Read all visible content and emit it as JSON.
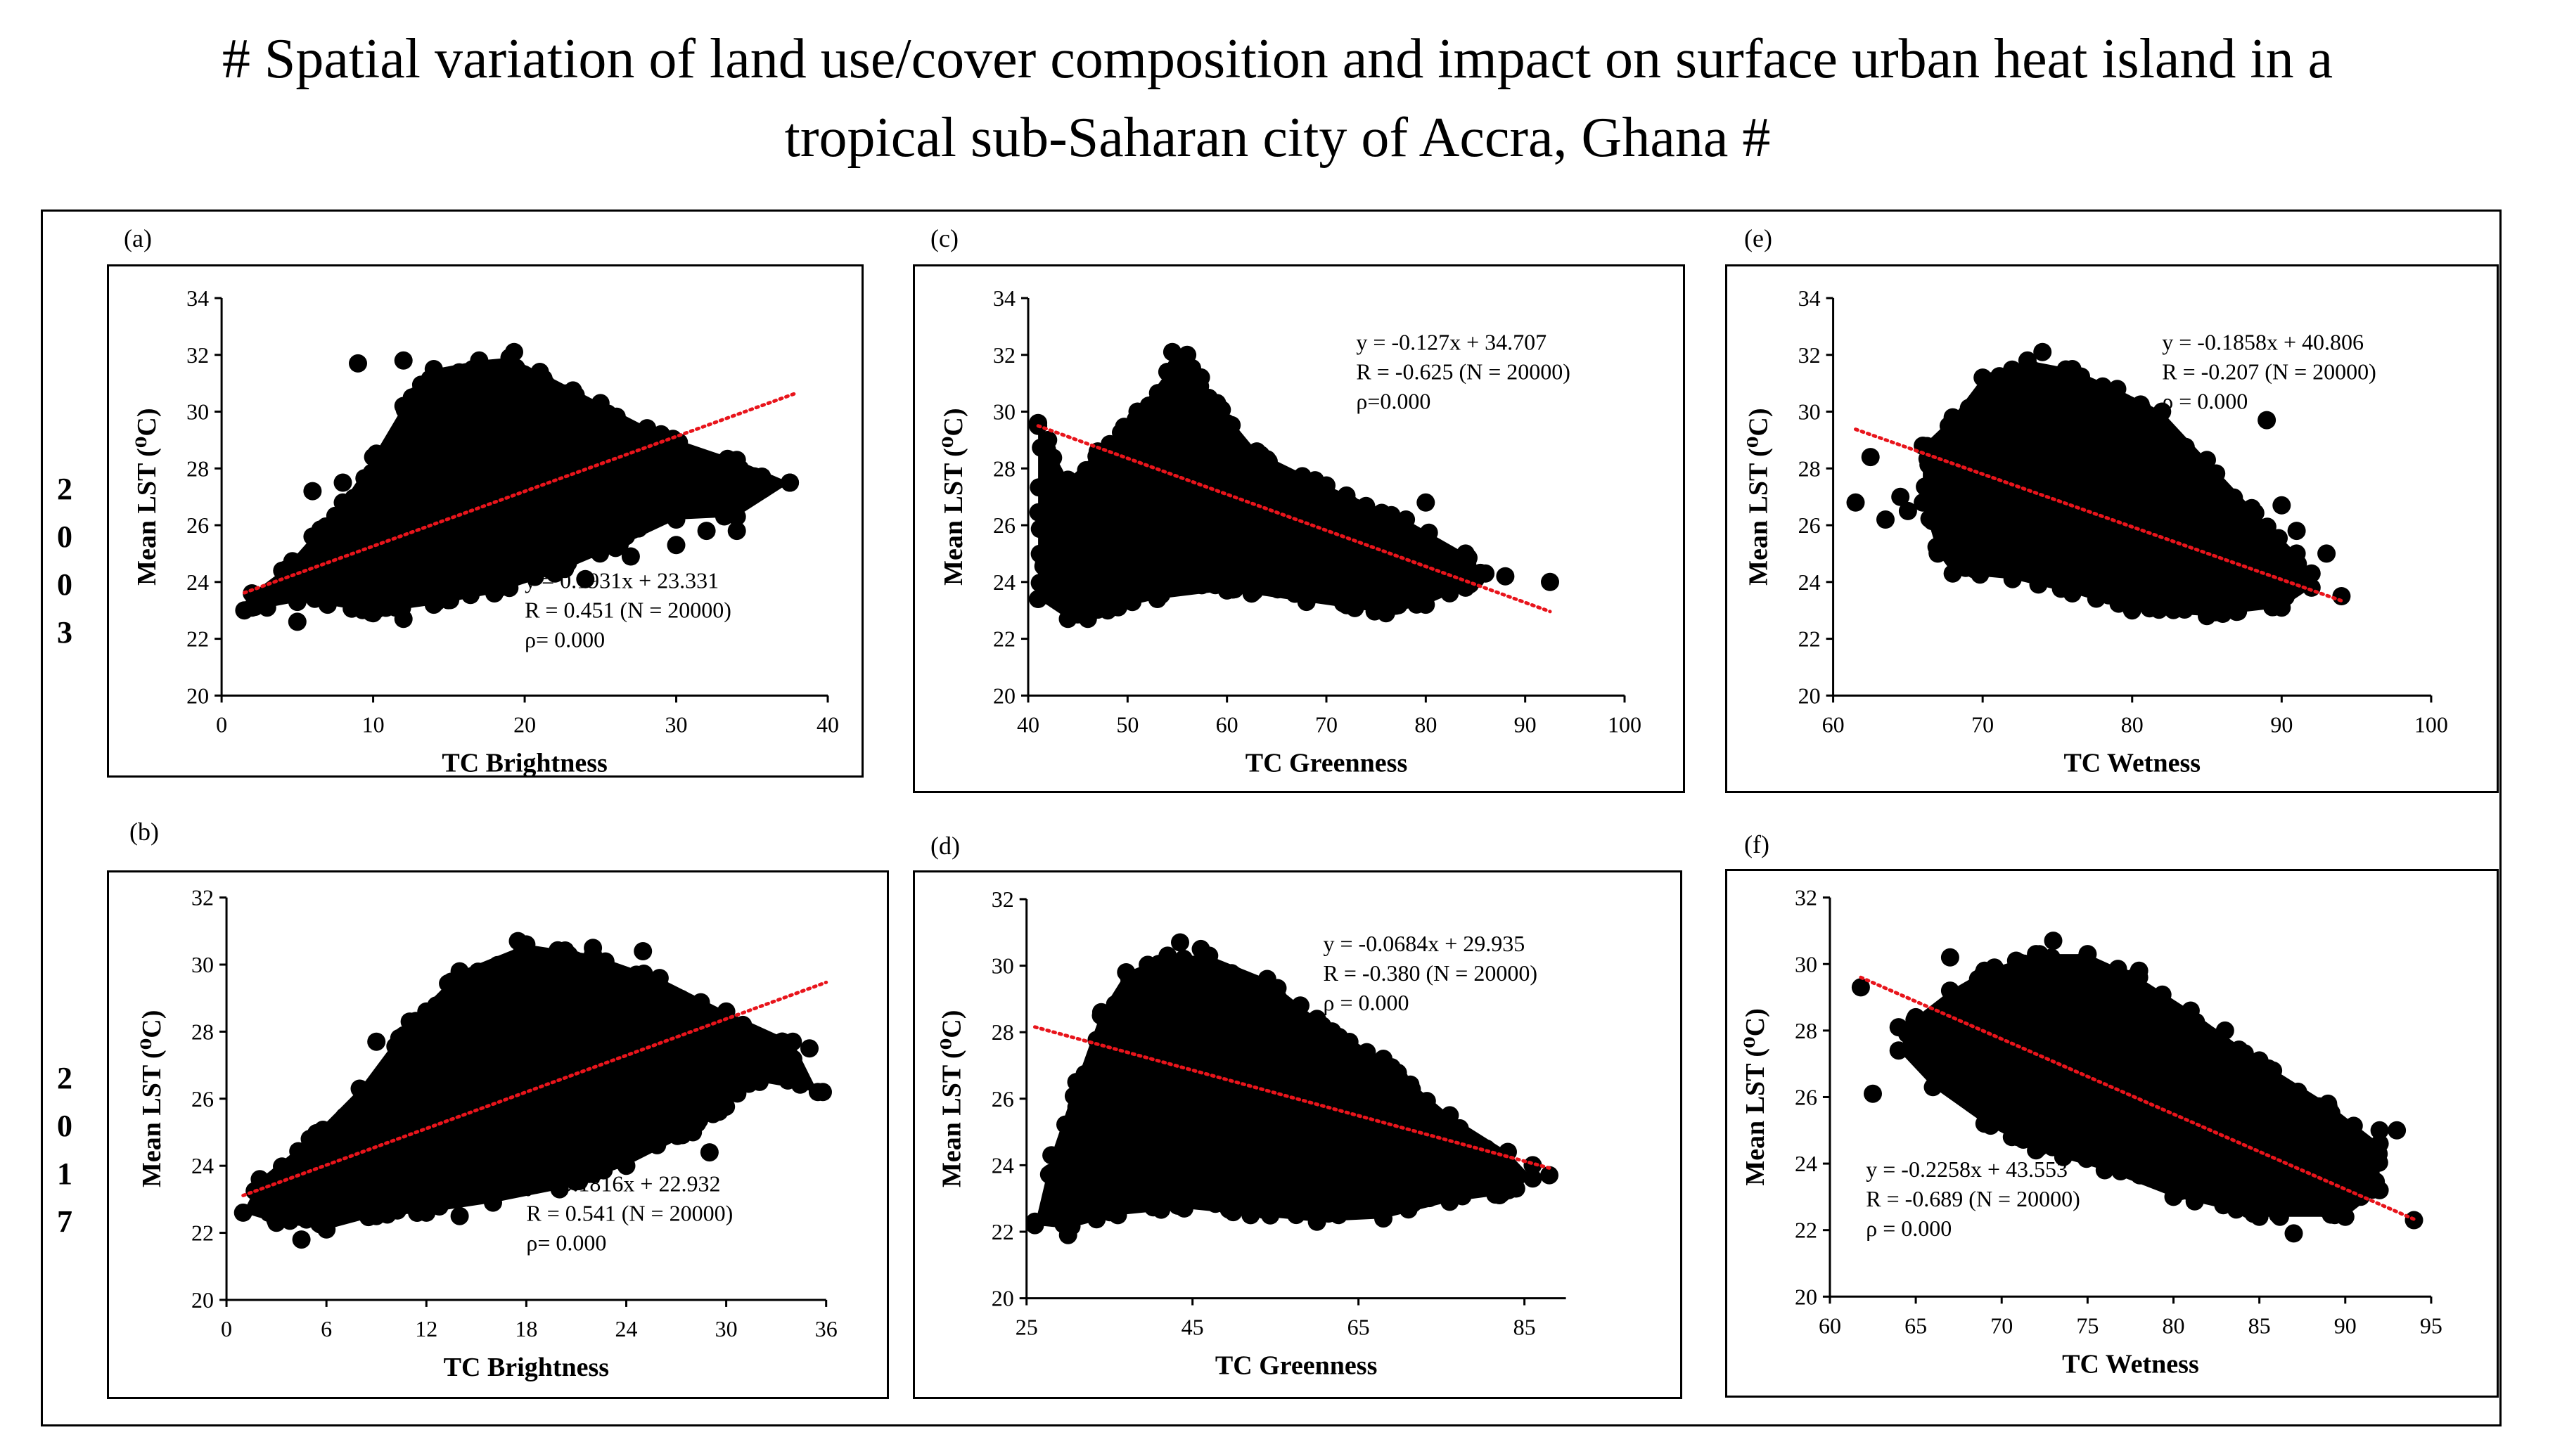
{
  "title": {
    "line1": "# Spatial variation of land use/cover composition and impact on surface urban heat island in a",
    "line2": "tropical sub-Saharan city of Accra, Ghana #"
  },
  "rows": [
    {
      "year_label": [
        "2",
        "0",
        "0",
        "3"
      ]
    },
    {
      "year_label": [
        "2",
        "0",
        "1",
        "7"
      ]
    }
  ],
  "colors": {
    "points": "#000000",
    "trendline": "#e8141b",
    "frame": "#000000"
  },
  "chart_data": [
    {
      "id": "a",
      "panel_label": "(a)",
      "type": "scatter",
      "xlabel": "TC Brightness",
      "ylabel": "Mean LST (⁰C)",
      "xlim": [
        0,
        40
      ],
      "ylim": [
        20,
        34
      ],
      "xticks": [
        0,
        10,
        20,
        30,
        40
      ],
      "yticks": [
        20,
        22,
        24,
        26,
        28,
        30,
        32,
        34
      ],
      "grid": false,
      "trendline": {
        "slope": 0.1931,
        "intercept": 23.331,
        "x_range": [
          1.5,
          38
        ]
      },
      "equation": "y = 0.1931x + 23.331",
      "r_text": "R = 0.451 (N =  20000)",
      "p_text": "ρ= 0.000",
      "annotation_position": "bottom-center",
      "cloud": [
        [
          1.5,
          23.0
        ],
        [
          3,
          23.1
        ],
        [
          5,
          23.3
        ],
        [
          7,
          23.2
        ],
        [
          10,
          22.9
        ],
        [
          14,
          23.2
        ],
        [
          18,
          23.6
        ],
        [
          22,
          24.3
        ],
        [
          26,
          25.2
        ],
        [
          30,
          26.2
        ],
        [
          34,
          26.3
        ],
        [
          37.5,
          27.5
        ],
        [
          34,
          28.3
        ],
        [
          29,
          29.2
        ],
        [
          25,
          30.3
        ],
        [
          21,
          31.4
        ],
        [
          19,
          31.9
        ],
        [
          17,
          31.8
        ],
        [
          14,
          31.5
        ],
        [
          12,
          30.2
        ],
        [
          10,
          28.4
        ],
        [
          8,
          26.8
        ],
        [
          6,
          25.6
        ],
        [
          4,
          24.4
        ],
        [
          2,
          23.6
        ]
      ],
      "points": [
        [
          9,
          31.7
        ],
        [
          12,
          31.8
        ],
        [
          19.3,
          32.1
        ],
        [
          35,
          27.5
        ],
        [
          37.5,
          27.5
        ],
        [
          32,
          25.8
        ],
        [
          34,
          25.8
        ],
        [
          30,
          25.3
        ],
        [
          27,
          24.9
        ],
        [
          24,
          24.1
        ],
        [
          6,
          27.2
        ],
        [
          8,
          27.5
        ],
        [
          5,
          22.6
        ],
        [
          12,
          22.7
        ],
        [
          2,
          23.1
        ],
        [
          7,
          24.3
        ],
        [
          15,
          28.5
        ],
        [
          25,
          29.0
        ],
        [
          28,
          28.0
        ],
        [
          10,
          25.0
        ]
      ]
    },
    {
      "id": "c",
      "panel_label": "(c)",
      "type": "scatter",
      "xlabel": "TC Greenness",
      "ylabel": "Mean LST (⁰C)",
      "xlim": [
        40,
        100
      ],
      "ylim": [
        20,
        34
      ],
      "xticks": [
        40,
        50,
        60,
        70,
        80,
        90,
        100
      ],
      "yticks": [
        20,
        22,
        24,
        26,
        28,
        30,
        32,
        34
      ],
      "grid": false,
      "trendline": {
        "slope": -0.127,
        "intercept": 34.707,
        "x_range": [
          41,
          92.5
        ]
      },
      "equation": "y = -0.127x + 34.707",
      "r_text": "R = -0.625 (N =  20000)",
      "p_text": "ρ=0.000",
      "annotation_position": "top-right",
      "cloud": [
        [
          41,
          23.4
        ],
        [
          44,
          22.7
        ],
        [
          48,
          23.0
        ],
        [
          53,
          23.4
        ],
        [
          60,
          23.7
        ],
        [
          68,
          23.3
        ],
        [
          76,
          22.9
        ],
        [
          80,
          23.2
        ],
        [
          84,
          23.8
        ],
        [
          86,
          24.3
        ],
        [
          84,
          25.0
        ],
        [
          78,
          26.2
        ],
        [
          70,
          27.4
        ],
        [
          63,
          28.6
        ],
        [
          59,
          30.3
        ],
        [
          56,
          32.0
        ],
        [
          54,
          31.4
        ],
        [
          51,
          30.0
        ],
        [
          47,
          28.6
        ],
        [
          44,
          27.6
        ],
        [
          41,
          29.6
        ]
      ],
      "points": [
        [
          54.5,
          32.1
        ],
        [
          92.5,
          24.0
        ],
        [
          88,
          24.2
        ],
        [
          85,
          24.1
        ],
        [
          80,
          26.8
        ],
        [
          41,
          29.5
        ],
        [
          42,
          29.0
        ],
        [
          46,
          22.7
        ],
        [
          48,
          23.1
        ],
        [
          63,
          28.2
        ],
        [
          70,
          26.8
        ],
        [
          75,
          25.8
        ]
      ]
    },
    {
      "id": "e",
      "panel_label": "(e)",
      "type": "scatter",
      "xlabel": "TC Wetness",
      "ylabel": "Mean LST (⁰C)",
      "xlim": [
        60,
        100
      ],
      "ylim": [
        20,
        34
      ],
      "xticks": [
        60,
        70,
        80,
        90,
        100
      ],
      "yticks": [
        20,
        22,
        24,
        26,
        28,
        30,
        32,
        34
      ],
      "grid": false,
      "trendline": {
        "slope": -0.1858,
        "intercept": 40.806,
        "x_range": [
          61.5,
          94
        ]
      },
      "equation": "y = -0.1858x + 40.806",
      "r_text": "R = -0.207 (N =  20000)",
      "p_text": "ρ = 0.000",
      "annotation_position": "top-right",
      "cloud": [
        [
          66,
          26.8
        ],
        [
          67,
          25.0
        ],
        [
          68,
          24.3
        ],
        [
          72,
          24.1
        ],
        [
          76,
          23.6
        ],
        [
          80,
          23.0
        ],
        [
          85,
          22.8
        ],
        [
          90,
          23.1
        ],
        [
          92,
          23.8
        ],
        [
          91,
          25.0
        ],
        [
          88,
          26.6
        ],
        [
          85,
          28.3
        ],
        [
          82,
          30.0
        ],
        [
          79,
          30.8
        ],
        [
          76,
          31.5
        ],
        [
          73,
          31.8
        ],
        [
          70,
          31.2
        ],
        [
          68,
          29.8
        ],
        [
          66,
          28.8
        ]
      ],
      "points": [
        [
          61.5,
          26.8
        ],
        [
          62.5,
          28.4
        ],
        [
          63.5,
          26.2
        ],
        [
          64.5,
          27.0
        ],
        [
          65,
          26.5
        ],
        [
          74,
          32.1
        ],
        [
          89,
          29.7
        ],
        [
          93,
          25.0
        ],
        [
          94,
          23.5
        ],
        [
          90,
          26.7
        ],
        [
          91,
          25.8
        ],
        [
          92,
          24.3
        ]
      ]
    },
    {
      "id": "b",
      "panel_label": "(b)",
      "type": "scatter",
      "xlabel": "TC Brightness",
      "ylabel": "Mean LST (⁰C)",
      "xlim": [
        0,
        36
      ],
      "ylim": [
        20,
        32
      ],
      "xticks": [
        0,
        6,
        12,
        18,
        24,
        30,
        36
      ],
      "yticks": [
        20,
        22,
        24,
        26,
        28,
        30,
        32
      ],
      "grid": false,
      "trendline": {
        "slope": 0.1816,
        "intercept": 22.932,
        "x_range": [
          1,
          36
        ]
      },
      "equation": "y = 0.1816x + 22.932",
      "r_text": "R = 0.541 (N =  20000)",
      "p_text": "ρ= 0.000",
      "annotation_position": "bottom-center",
      "cloud": [
        [
          1,
          22.6
        ],
        [
          3,
          22.3
        ],
        [
          6,
          22.1
        ],
        [
          9,
          22.5
        ],
        [
          12,
          22.6
        ],
        [
          16,
          22.9
        ],
        [
          20,
          23.3
        ],
        [
          24,
          24.0
        ],
        [
          28,
          25.0
        ],
        [
          32,
          26.5
        ],
        [
          35.5,
          26.2
        ],
        [
          34,
          27.7
        ],
        [
          30,
          28.6
        ],
        [
          26,
          29.6
        ],
        [
          22,
          30.3
        ],
        [
          18,
          30.6
        ],
        [
          14,
          29.8
        ],
        [
          11,
          28.3
        ],
        [
          8,
          26.3
        ],
        [
          5,
          24.8
        ],
        [
          2,
          23.6
        ]
      ],
      "points": [
        [
          17.5,
          30.7
        ],
        [
          22,
          30.5
        ],
        [
          25,
          30.4
        ],
        [
          35.8,
          26.2
        ],
        [
          35,
          27.5
        ],
        [
          33,
          27.0
        ],
        [
          29,
          24.4
        ],
        [
          4.5,
          21.8
        ],
        [
          14,
          22.5
        ],
        [
          9,
          27.7
        ],
        [
          12,
          28.6
        ],
        [
          7,
          25.2
        ],
        [
          31,
          28.2
        ]
      ]
    },
    {
      "id": "d",
      "panel_label": "(d)",
      "type": "scatter",
      "xlabel": "TC Greenness",
      "ylabel": "Mean LST (⁰C)",
      "xlim": [
        25,
        90
      ],
      "ylim": [
        20,
        32
      ],
      "xticks": [
        25,
        45,
        65,
        85
      ],
      "yticks": [
        20,
        22,
        24,
        26,
        28,
        30,
        32
      ],
      "grid": false,
      "trendline": {
        "slope": -0.0684,
        "intercept": 29.935,
        "x_range": [
          26,
          88
        ]
      },
      "equation": "y = -0.0684x + 29.935",
      "r_text": "R = -0.380 (N =  20000)",
      "p_text": "ρ = 0.000",
      "annotation_position": "top-right",
      "cloud": [
        [
          26,
          22.2
        ],
        [
          30,
          22.1
        ],
        [
          36,
          22.5
        ],
        [
          44,
          22.7
        ],
        [
          52,
          22.5
        ],
        [
          60,
          22.3
        ],
        [
          68,
          22.4
        ],
        [
          76,
          22.9
        ],
        [
          82,
          23.1
        ],
        [
          86,
          23.6
        ],
        [
          83,
          24.4
        ],
        [
          76,
          25.5
        ],
        [
          68,
          27.2
        ],
        [
          60,
          28.4
        ],
        [
          54,
          29.6
        ],
        [
          47,
          30.3
        ],
        [
          42,
          30.3
        ],
        [
          37,
          29.8
        ],
        [
          34,
          28.6
        ],
        [
          31,
          26.5
        ],
        [
          28,
          24.3
        ]
      ],
      "points": [
        [
          43.5,
          30.7
        ],
        [
          46,
          30.5
        ],
        [
          88,
          23.7
        ],
        [
          86,
          24.0
        ],
        [
          84,
          23.3
        ],
        [
          26,
          22.3
        ],
        [
          30,
          21.9
        ],
        [
          58,
          28.8
        ],
        [
          66,
          27.4
        ],
        [
          72,
          25.6
        ]
      ]
    },
    {
      "id": "f",
      "panel_label": "(f)",
      "type": "scatter",
      "xlabel": "TC Wetness",
      "ylabel": "Mean LST (⁰C)",
      "xlim": [
        60,
        95
      ],
      "ylim": [
        20,
        32
      ],
      "xticks": [
        60,
        65,
        70,
        75,
        80,
        85,
        90,
        95
      ],
      "yticks": [
        20,
        22,
        24,
        26,
        28,
        30,
        32
      ],
      "grid": false,
      "trendline": {
        "slope": -0.2258,
        "intercept": 43.553,
        "x_range": [
          61.8,
          94
        ]
      },
      "equation": "y = -0.2258x + 43.553",
      "r_text": "R = -0.689 (N =  20000)",
      "p_text": "ρ = 0.000",
      "annotation_position": "bottom-left",
      "cloud": [
        [
          64,
          27.4
        ],
        [
          66,
          26.3
        ],
        [
          69,
          25.2
        ],
        [
          72,
          24.4
        ],
        [
          76,
          23.8
        ],
        [
          80,
          23.0
        ],
        [
          85,
          22.4
        ],
        [
          90,
          22.4
        ],
        [
          92,
          23.2
        ],
        [
          92,
          24.6
        ],
        [
          89,
          25.8
        ],
        [
          85,
          27.1
        ],
        [
          81,
          28.6
        ],
        [
          78,
          29.6
        ],
        [
          75,
          30.3
        ],
        [
          72,
          30.3
        ],
        [
          69,
          29.8
        ],
        [
          67,
          29.2
        ],
        [
          65,
          28.4
        ]
      ],
      "points": [
        [
          61.8,
          29.3
        ],
        [
          62.5,
          26.1
        ],
        [
          64,
          28.1
        ],
        [
          67,
          30.2
        ],
        [
          73,
          30.7
        ],
        [
          78,
          29.8
        ],
        [
          94,
          22.3
        ],
        [
          93,
          25.0
        ],
        [
          92,
          25.0
        ],
        [
          90,
          23.6
        ],
        [
          87,
          21.9
        ],
        [
          79,
          23.6
        ],
        [
          83,
          28.0
        ]
      ]
    }
  ]
}
